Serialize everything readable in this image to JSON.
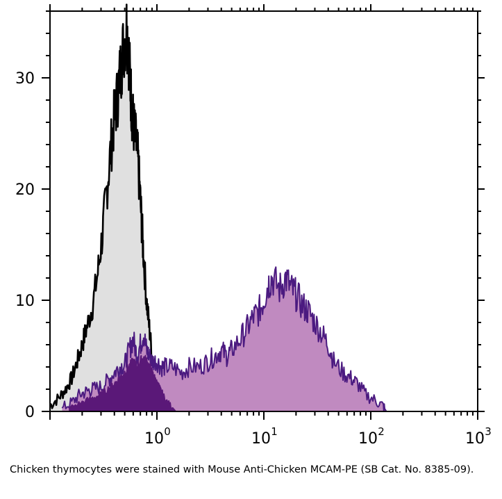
{
  "chart_data": {
    "type": "area",
    "x_scale": "log",
    "xlim": [
      0.1,
      1000
    ],
    "ylim": [
      0,
      36
    ],
    "y_ticks": [
      0,
      10,
      20,
      30
    ],
    "x_tick_labels": [
      {
        "value": 1,
        "base": "10",
        "exp": "0"
      },
      {
        "value": 10,
        "base": "10",
        "exp": "1"
      },
      {
        "value": 100,
        "base": "10",
        "exp": "2"
      },
      {
        "value": 1000,
        "base": "10",
        "exp": "3"
      }
    ],
    "grid": false,
    "legend": "none",
    "series": [
      {
        "fill": "#e0e0e0",
        "stroke": "#000000",
        "x": [
          0.1,
          0.12,
          0.14,
          0.16,
          0.18,
          0.2,
          0.22,
          0.25,
          0.28,
          0.31,
          0.34,
          0.37,
          0.4,
          0.43,
          0.46,
          0.49,
          0.52,
          0.54,
          0.56,
          0.58,
          0.6,
          0.63,
          0.66,
          0.69,
          0.72,
          0.75,
          0.8,
          0.85,
          0.9,
          0.95,
          1.0,
          1.1,
          1.2,
          1.35
        ],
        "y": [
          0.5,
          1.2,
          2.0,
          3.0,
          4.5,
          6.0,
          7.5,
          9.5,
          12.5,
          16.0,
          20.0,
          23.5,
          26.5,
          28.5,
          31.0,
          33.0,
          34.5,
          33.0,
          30.0,
          27.5,
          26.0,
          24.5,
          23.0,
          20.0,
          17.0,
          14.0,
          10.0,
          7.5,
          5.0,
          3.5,
          2.5,
          1.5,
          0.8,
          0
        ]
      },
      {
        "fill": "#c08ac0",
        "stroke": "#4b1a80",
        "x": [
          0.13,
          0.16,
          0.19,
          0.22,
          0.25,
          0.3,
          0.35,
          0.4,
          0.45,
          0.5,
          0.55,
          0.6,
          0.65,
          0.7,
          0.75,
          0.8,
          0.85,
          0.9,
          1.0,
          1.1,
          1.2,
          1.4,
          1.7,
          2.0,
          2.5,
          3.0,
          3.5,
          4.0,
          4.5,
          5.0,
          6.0,
          7.0,
          8.0,
          9.0,
          10.0,
          11.0,
          12.0,
          14.0,
          16.0,
          18.0,
          20.0,
          23.0,
          26.0,
          30.0,
          35.0,
          40.0,
          45.0,
          55.0,
          65.0,
          75.0,
          90.0,
          110.0,
          130.0,
          140.0
        ],
        "y": [
          0.3,
          0.8,
          1.5,
          1.8,
          2.0,
          2.2,
          2.8,
          3.5,
          4.0,
          4.2,
          5.5,
          6.5,
          5.0,
          6.0,
          7.0,
          5.5,
          5.0,
          4.5,
          4.5,
          4.0,
          4.0,
          4.0,
          3.5,
          4.0,
          4.0,
          4.5,
          5.0,
          5.5,
          5.0,
          5.5,
          6.5,
          7.5,
          8.5,
          9.0,
          10.0,
          11.5,
          12.0,
          11.0,
          12.0,
          11.0,
          10.5,
          9.5,
          9.0,
          8.0,
          7.0,
          6.0,
          4.5,
          3.5,
          3.0,
          2.5,
          1.5,
          1.0,
          0.5,
          0
        ]
      },
      {
        "fill": "#5a1878",
        "stroke": "#5a1878",
        "x": [
          0.15,
          0.2,
          0.25,
          0.3,
          0.35,
          0.4,
          0.45,
          0.5,
          0.55,
          0.6,
          0.65,
          0.7,
          0.75,
          0.8,
          0.85,
          0.9,
          0.95,
          1.0,
          1.1,
          1.2,
          1.35,
          1.5
        ],
        "y": [
          0.3,
          0.8,
          1.2,
          1.5,
          2.0,
          2.5,
          3.0,
          3.5,
          4.0,
          4.5,
          4.0,
          4.5,
          4.8,
          4.5,
          4.0,
          3.5,
          3.0,
          2.5,
          1.8,
          1.0,
          0.5,
          0
        ]
      }
    ]
  },
  "caption": "Chicken thymocytes were stained with Mouse Anti-Chicken MCAM-PE (SB Cat. No. 8385-09)."
}
